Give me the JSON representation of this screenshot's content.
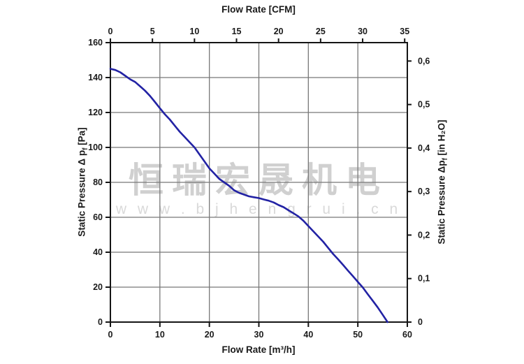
{
  "watermark": {
    "line1": "恒瑞宏晟机电",
    "line2": "w w w . b j h e n g r u i . c n"
  },
  "colors": {
    "curve": "#2222a4",
    "grid": "#787878",
    "frame": "#151515",
    "tick_text": "#1a1a1a",
    "background": "#ffffff",
    "watermark_cn": "#d0d0d0",
    "watermark_url": "#d9d9d9"
  },
  "chart_data": {
    "type": "line",
    "title_top": "Flow Rate [CFM]",
    "title_bottom": "Flow Rate [m³/h]",
    "ylabel_left": {
      "pre": "Static Pressure Δ p",
      "sub": "f",
      "post": " [Pa]"
    },
    "ylabel_right": {
      "pre": "Static Pressure Δp",
      "sub": "f",
      "post": " [in H₂O]"
    },
    "grid": "on",
    "legend": "none",
    "x_bottom": {
      "unit": "m³/h",
      "min": 0,
      "max": 60,
      "ticks": [
        0,
        10,
        20,
        30,
        40,
        50,
        60
      ]
    },
    "x_top": {
      "unit": "CFM",
      "ticks": [
        0,
        5,
        10,
        15,
        20,
        25,
        30,
        35
      ],
      "m3h_per_cfm": 1.699
    },
    "y_left": {
      "unit": "Pa",
      "min": 0,
      "max": 160,
      "ticks": [
        0,
        20,
        40,
        60,
        80,
        100,
        120,
        140,
        160
      ]
    },
    "y_right": {
      "unit": "in H₂O",
      "ticks": [
        0,
        0.1,
        0.2,
        0.3,
        0.4,
        0.5,
        0.6
      ],
      "tick_labels": [
        "0",
        "0,1",
        "0,2",
        "0,3",
        "0,4",
        "0,5",
        "0,6"
      ],
      "pa_per_inH2O": 249.1
    },
    "series": [
      {
        "name": "static-pressure-curve",
        "points_m3h_pa": [
          [
            0,
            145
          ],
          [
            1,
            144.3
          ],
          [
            2,
            143
          ],
          [
            3,
            141
          ],
          [
            4,
            139
          ],
          [
            5,
            137.5
          ],
          [
            6,
            135
          ],
          [
            7,
            132.5
          ],
          [
            8,
            129.5
          ],
          [
            9,
            126
          ],
          [
            10,
            122.5
          ],
          [
            11,
            119
          ],
          [
            12,
            116
          ],
          [
            13,
            112.5
          ],
          [
            14,
            109
          ],
          [
            15,
            106
          ],
          [
            16,
            103
          ],
          [
            17,
            100
          ],
          [
            18,
            96
          ],
          [
            19,
            92
          ],
          [
            20,
            88
          ],
          [
            21,
            85
          ],
          [
            22,
            82
          ],
          [
            23,
            80
          ],
          [
            24,
            78
          ],
          [
            25,
            75.5
          ],
          [
            26,
            74
          ],
          [
            27,
            73
          ],
          [
            28,
            72
          ],
          [
            29,
            71.5
          ],
          [
            30,
            71
          ],
          [
            31,
            70.2
          ],
          [
            32,
            69.5
          ],
          [
            33,
            68.5
          ],
          [
            34,
            67
          ],
          [
            35,
            65.8
          ],
          [
            36,
            64
          ],
          [
            37,
            62.3
          ],
          [
            38,
            60.5
          ],
          [
            39,
            58
          ],
          [
            40,
            55
          ],
          [
            41,
            52
          ],
          [
            42,
            49
          ],
          [
            43,
            46
          ],
          [
            44,
            42.5
          ],
          [
            45,
            39
          ],
          [
            46,
            36
          ],
          [
            47,
            32.8
          ],
          [
            48,
            29.5
          ],
          [
            49,
            26.3
          ],
          [
            50,
            23
          ],
          [
            51,
            19.8
          ],
          [
            52,
            16
          ],
          [
            53,
            12.3
          ],
          [
            54,
            8.5
          ],
          [
            55,
            4.3
          ],
          [
            56,
            0
          ]
        ]
      }
    ]
  }
}
